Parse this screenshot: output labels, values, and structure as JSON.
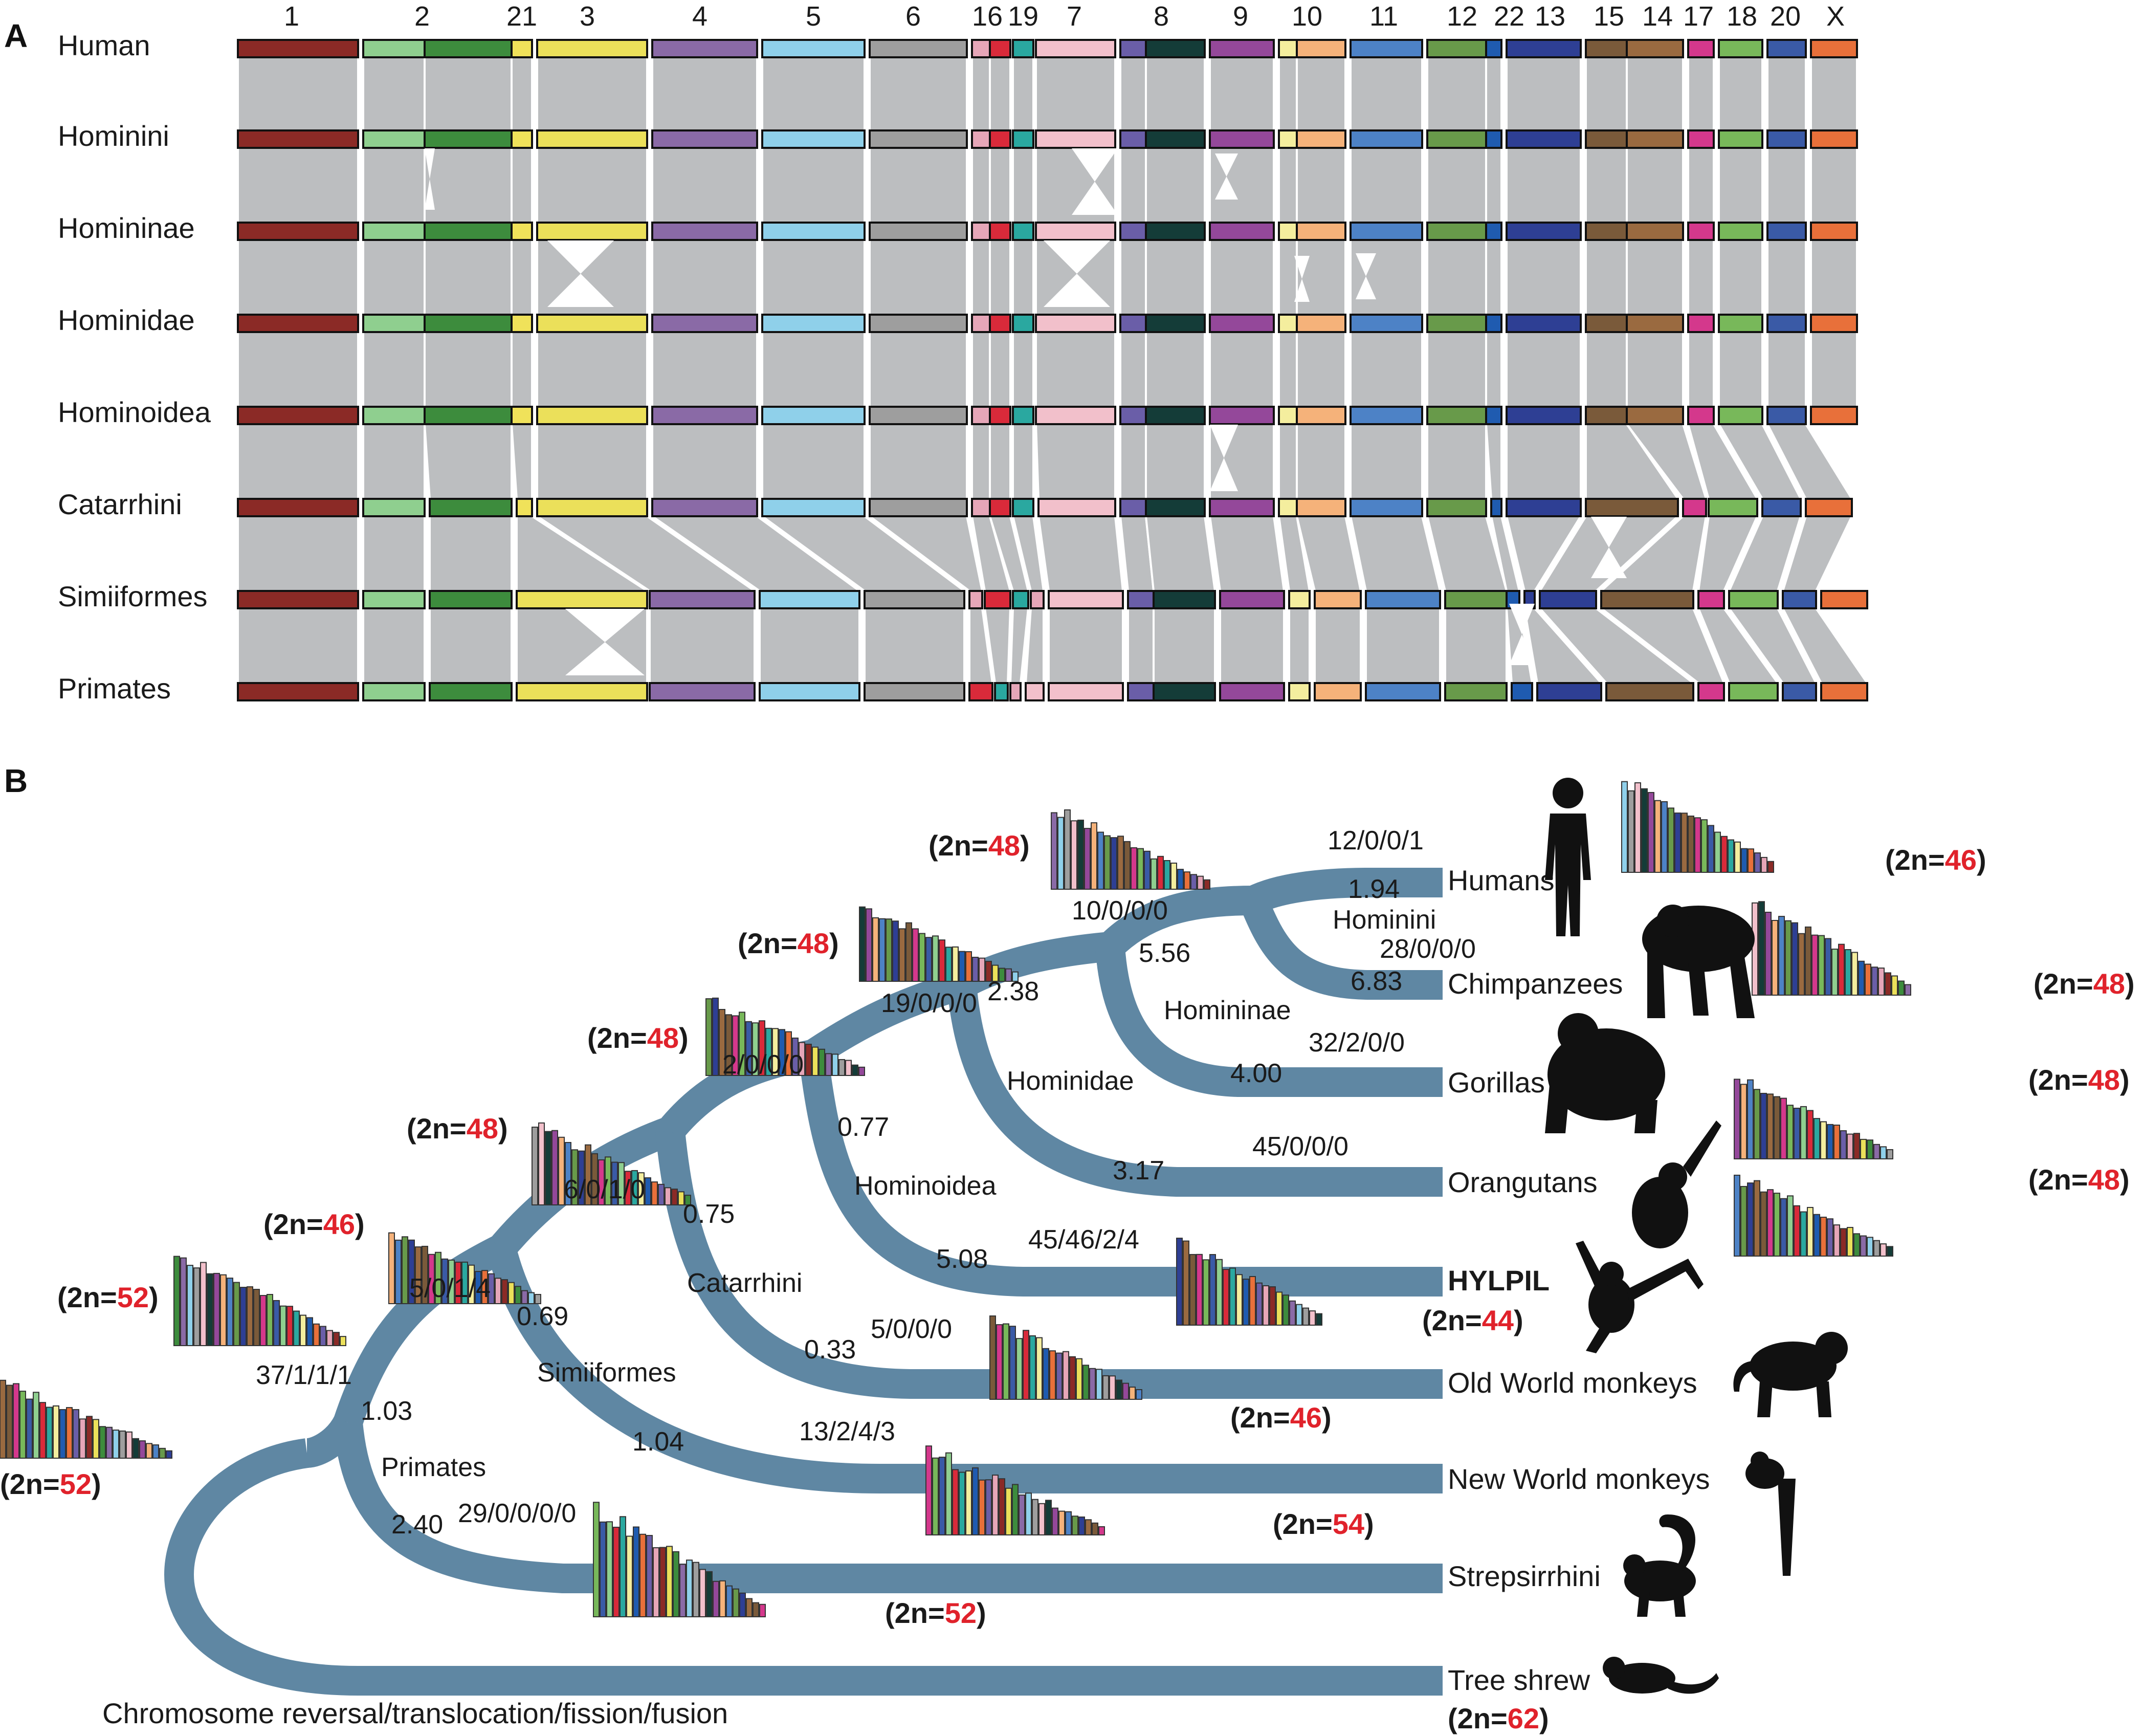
{
  "panel_a": {
    "letter": "A",
    "rows": [
      "Human",
      "Hominini",
      "Homininae",
      "Hominidae",
      "Hominoidea",
      "Catarrhini",
      "Simiiformes",
      "Primates"
    ],
    "chromosome_labels": [
      "1",
      "2",
      "21",
      "3",
      "4",
      "5",
      "6",
      "16",
      "19",
      "7",
      "8",
      "9",
      "10",
      "11",
      "12",
      "22",
      "13",
      "15",
      "14",
      "17",
      "18",
      "20",
      "X"
    ],
    "colors": {
      "c1": "#8b2a26",
      "c2a": "#8fcf8f",
      "c2b": "#3d8c3d",
      "c21": "#f0e25a",
      "c3": "#ebe05a",
      "c4": "#8a6aa6",
      "c5": "#8fd0ea",
      "c6": "#9e9e9e",
      "c16a": "#e6a6b8",
      "c16b": "#d92a3a",
      "c19": "#2aa8a0",
      "c7": "#f2c0cb",
      "c8a": "#6a5ea8",
      "c8b": "#143c38",
      "c9": "#94489a",
      "c10a": "#f4ee9e",
      "c10b": "#f5b27a",
      "c11": "#4d82c6",
      "c12": "#689a4a",
      "c22": "#1f5bb0",
      "c13": "#2e3f94",
      "c15": "#7a5a3a",
      "c14": "#9a6a40",
      "c17": "#d4388c",
      "c18": "#78b85a",
      "c20": "#3a5aa6",
      "cX": "#e8703a",
      "band": "#bcbec0",
      "tree": "#5f87a3"
    }
  },
  "panel_b": {
    "letter": "B",
    "legend": "Chromosome reversal/translocation/fission/fusion",
    "taxa": [
      "Humans",
      "Chimpanzees",
      "Gorillas",
      "Orangutans",
      "HYLPIL",
      "Old World monkeys",
      "New World monkeys",
      "Strepsirrhini",
      "Tree shrew"
    ],
    "nodes": [
      "Hominini",
      "Homininae",
      "Hominidae",
      "Hominoidea",
      "Catarrhini",
      "Simiiformes",
      "Primates"
    ],
    "branch_lengths": [
      "1.94",
      "6.83",
      "5.56",
      "4.00",
      "2.38",
      "3.17",
      "0.77",
      "5.08",
      "0.75",
      "0.33",
      "0.69",
      "1.04",
      "1.03",
      "2.40"
    ],
    "events": [
      "12/0/0/1",
      "28/0/0/0",
      "10/0/0/0",
      "32/2/0/0",
      "19/0/0/0",
      "45/0/0/0",
      "2/0/0/0",
      "45/46/2/4",
      "6/0/1/0",
      "5/0/0/0",
      "5/0/1/4",
      "13/2/4/3",
      "37/1/1/1",
      "29/0/0/0/0"
    ],
    "ploidy_prefix": "(2n=",
    "ploidy_suffix": ")",
    "ploidy": {
      "humans": "46",
      "chimpanzees": "48",
      "gorillas": "48",
      "orangutans": "48",
      "hylpil": "44",
      "old_world": "46",
      "new_world": "54",
      "strepsirrhini": "52",
      "tree_shrew": "62",
      "hominini_anc": "48",
      "homininae_anc": "48",
      "hominidae_anc": "48",
      "hominoidea_anc": "48",
      "catarrhini_anc": "46",
      "simiiformes_anc": "52",
      "primates_anc": "52"
    }
  }
}
